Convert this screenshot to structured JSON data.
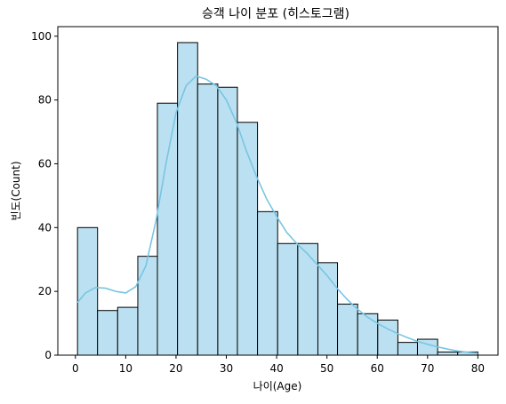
{
  "chart_data": {
    "type": "histogram",
    "title": "승객 나이 분포 (히스토그램)",
    "xlabel": "나이(Age)",
    "ylabel": "빈도(Count)",
    "xlim": [
      -3.5,
      84.0
    ],
    "ylim": [
      0,
      103
    ],
    "xticks": [
      0,
      10,
      20,
      30,
      40,
      50,
      60,
      70,
      80
    ],
    "yticks": [
      0,
      20,
      40,
      60,
      80,
      100
    ],
    "bins": [
      {
        "x0": 0.42,
        "x1": 4.4,
        "count": 40
      },
      {
        "x0": 4.4,
        "x1": 8.4,
        "count": 14
      },
      {
        "x0": 8.4,
        "x1": 12.4,
        "count": 15
      },
      {
        "x0": 12.4,
        "x1": 16.3,
        "count": 31
      },
      {
        "x0": 16.3,
        "x1": 20.3,
        "count": 79
      },
      {
        "x0": 20.3,
        "x1": 24.3,
        "count": 98
      },
      {
        "x0": 24.3,
        "x1": 28.3,
        "count": 85
      },
      {
        "x0": 28.3,
        "x1": 32.2,
        "count": 84
      },
      {
        "x0": 32.2,
        "x1": 36.2,
        "count": 73
      },
      {
        "x0": 36.2,
        "x1": 40.2,
        "count": 45
      },
      {
        "x0": 40.2,
        "x1": 44.2,
        "count": 35
      },
      {
        "x0": 44.2,
        "x1": 48.2,
        "count": 35
      },
      {
        "x0": 48.2,
        "x1": 52.1,
        "count": 29
      },
      {
        "x0": 52.1,
        "x1": 56.1,
        "count": 16
      },
      {
        "x0": 56.1,
        "x1": 60.1,
        "count": 13
      },
      {
        "x0": 60.1,
        "x1": 64.1,
        "count": 11
      },
      {
        "x0": 64.1,
        "x1": 68.0,
        "count": 4
      },
      {
        "x0": 68.0,
        "x1": 72.0,
        "count": 5
      },
      {
        "x0": 72.0,
        "x1": 76.0,
        "count": 1
      },
      {
        "x0": 76.0,
        "x1": 80.0,
        "count": 1
      }
    ],
    "kde": {
      "x": [
        0.4,
        2,
        4,
        6,
        8,
        10,
        12,
        14,
        16,
        18,
        20,
        22,
        24,
        26,
        28,
        30,
        32,
        34,
        36,
        38,
        40,
        42,
        44,
        46,
        48,
        50,
        52,
        54,
        56,
        58,
        60,
        62,
        64,
        66,
        68,
        70,
        72,
        74,
        76,
        78,
        80
      ],
      "y": [
        16.5,
        19.5,
        21.2,
        21,
        20,
        19.5,
        21.5,
        28,
        42,
        60,
        76,
        84.5,
        87.5,
        86.5,
        84.5,
        80,
        73,
        64,
        56,
        49,
        43.5,
        38.5,
        35,
        32,
        28.5,
        25,
        21,
        17.5,
        14.5,
        12,
        10,
        8.3,
        6.8,
        5.5,
        4.3,
        3.4,
        2.6,
        1.9,
        1.3,
        0.9,
        0.6
      ]
    },
    "bar_color": "#bbe0f1",
    "bar_edge_color": "#000000",
    "kde_color": "#78c6e3",
    "grid": false,
    "legend": false
  }
}
